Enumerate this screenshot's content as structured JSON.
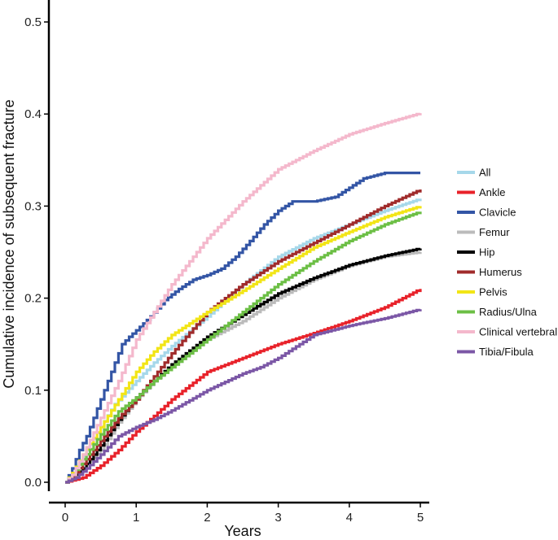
{
  "chart_data": {
    "type": "line",
    "title": "",
    "xlabel": "Years",
    "ylabel": "Cumulative incidence of subsequent fracture",
    "xlim": [
      0,
      5
    ],
    "ylim": [
      0,
      0.5
    ],
    "x_ticks": [
      0,
      1,
      2,
      3,
      4,
      5
    ],
    "x_tick_labels": [
      "0",
      "1",
      "2",
      "3",
      "4",
      "5"
    ],
    "y_ticks": [
      0,
      0.1,
      0.2,
      0.3,
      0.4,
      0.5
    ],
    "y_tick_labels": [
      "0.0",
      "0.1",
      "0.2",
      "0.3",
      "0.4",
      "0.5"
    ],
    "grid": false,
    "legend_position": "right",
    "series": [
      {
        "name": "All",
        "color": "#a6d8ea",
        "x": [
          0,
          0.1,
          0.2,
          0.3,
          0.5,
          0.7,
          1.0,
          1.25,
          1.5,
          2.0,
          2.5,
          3.0,
          3.5,
          4.0,
          4.5,
          5.0
        ],
        "y": [
          0,
          0.008,
          0.02,
          0.035,
          0.06,
          0.085,
          0.11,
          0.13,
          0.148,
          0.18,
          0.215,
          0.245,
          0.265,
          0.28,
          0.295,
          0.308
        ]
      },
      {
        "name": "Ankle",
        "color": "#e8222a",
        "x": [
          0,
          0.25,
          0.5,
          0.75,
          1.0,
          1.25,
          1.5,
          2.0,
          2.5,
          3.0,
          3.5,
          4.0,
          4.5,
          5.0
        ],
        "y": [
          0,
          0.005,
          0.018,
          0.035,
          0.055,
          0.072,
          0.09,
          0.12,
          0.135,
          0.15,
          0.162,
          0.175,
          0.19,
          0.21
        ]
      },
      {
        "name": "Clavicle",
        "color": "#3355a5",
        "x": [
          0,
          0.1,
          0.2,
          0.3,
          0.4,
          0.5,
          0.6,
          0.7,
          0.8,
          0.9,
          1.0,
          1.2,
          1.4,
          1.6,
          1.8,
          2.0,
          2.2,
          2.4,
          2.6,
          2.8,
          3.0,
          3.2,
          3.5,
          3.8,
          4.0,
          4.2,
          4.5,
          5.0
        ],
        "y": [
          0,
          0.015,
          0.035,
          0.05,
          0.07,
          0.09,
          0.11,
          0.13,
          0.15,
          0.158,
          0.165,
          0.18,
          0.198,
          0.21,
          0.22,
          0.225,
          0.232,
          0.245,
          0.262,
          0.28,
          0.295,
          0.305,
          0.305,
          0.31,
          0.32,
          0.33,
          0.336,
          0.336
        ]
      },
      {
        "name": "Femur",
        "color": "#bbbbbb",
        "x": [
          0,
          0.2,
          0.5,
          0.75,
          1.0,
          1.25,
          1.5,
          2.0,
          2.5,
          3.0,
          3.5,
          4.0,
          4.5,
          5.0
        ],
        "y": [
          0,
          0.01,
          0.035,
          0.065,
          0.09,
          0.11,
          0.125,
          0.155,
          0.175,
          0.2,
          0.22,
          0.235,
          0.245,
          0.25
        ]
      },
      {
        "name": "Hip",
        "color": "#000000",
        "x": [
          0,
          0.1,
          0.25,
          0.5,
          0.75,
          1.0,
          1.25,
          1.5,
          2.0,
          2.5,
          3.0,
          3.5,
          4.0,
          4.5,
          5.0
        ],
        "y": [
          0,
          0.005,
          0.015,
          0.04,
          0.068,
          0.092,
          0.11,
          0.128,
          0.158,
          0.182,
          0.205,
          0.222,
          0.236,
          0.246,
          0.254
        ]
      },
      {
        "name": "Humerus",
        "color": "#a02b2b",
        "x": [
          0,
          0.1,
          0.25,
          0.5,
          0.75,
          1.0,
          1.25,
          1.5,
          2.0,
          2.5,
          3.0,
          3.5,
          4.0,
          4.5,
          5.0
        ],
        "y": [
          0,
          0.006,
          0.02,
          0.045,
          0.07,
          0.09,
          0.115,
          0.14,
          0.185,
          0.215,
          0.24,
          0.26,
          0.28,
          0.3,
          0.318
        ]
      },
      {
        "name": "Pelvis",
        "color": "#f2e516",
        "x": [
          0,
          0.1,
          0.25,
          0.5,
          0.75,
          1.0,
          1.25,
          1.5,
          2.0,
          2.5,
          3.0,
          3.5,
          4.0,
          4.5,
          5.0
        ],
        "y": [
          0,
          0.01,
          0.03,
          0.06,
          0.09,
          0.12,
          0.142,
          0.16,
          0.185,
          0.208,
          0.232,
          0.255,
          0.272,
          0.288,
          0.3
        ]
      },
      {
        "name": "Radius/Ulna",
        "color": "#6cbf45",
        "x": [
          0,
          0.1,
          0.25,
          0.5,
          0.75,
          1.0,
          1.25,
          1.5,
          2.0,
          2.5,
          3.0,
          3.5,
          4.0,
          4.5,
          5.0
        ],
        "y": [
          0,
          0.008,
          0.025,
          0.052,
          0.077,
          0.092,
          0.11,
          0.125,
          0.155,
          0.185,
          0.215,
          0.24,
          0.262,
          0.28,
          0.294
        ]
      },
      {
        "name": "Clinical vertebral",
        "color": "#f4b8cc",
        "x": [
          0,
          0.1,
          0.25,
          0.5,
          0.75,
          1.0,
          1.25,
          1.5,
          2.0,
          2.5,
          3.0,
          3.5,
          4.0,
          4.5,
          5.0
        ],
        "y": [
          0,
          0.008,
          0.03,
          0.07,
          0.11,
          0.155,
          0.185,
          0.215,
          0.265,
          0.305,
          0.34,
          0.36,
          0.378,
          0.39,
          0.401
        ]
      },
      {
        "name": "Tibia/Fibula",
        "color": "#7b57a6",
        "x": [
          0,
          0.15,
          0.3,
          0.5,
          0.75,
          1.0,
          1.25,
          1.5,
          2.0,
          2.5,
          2.75,
          3.0,
          3.5,
          4.0,
          4.5,
          5.0
        ],
        "y": [
          0,
          0.005,
          0.015,
          0.03,
          0.05,
          0.06,
          0.068,
          0.078,
          0.1,
          0.118,
          0.125,
          0.135,
          0.16,
          0.17,
          0.178,
          0.188
        ]
      }
    ]
  }
}
